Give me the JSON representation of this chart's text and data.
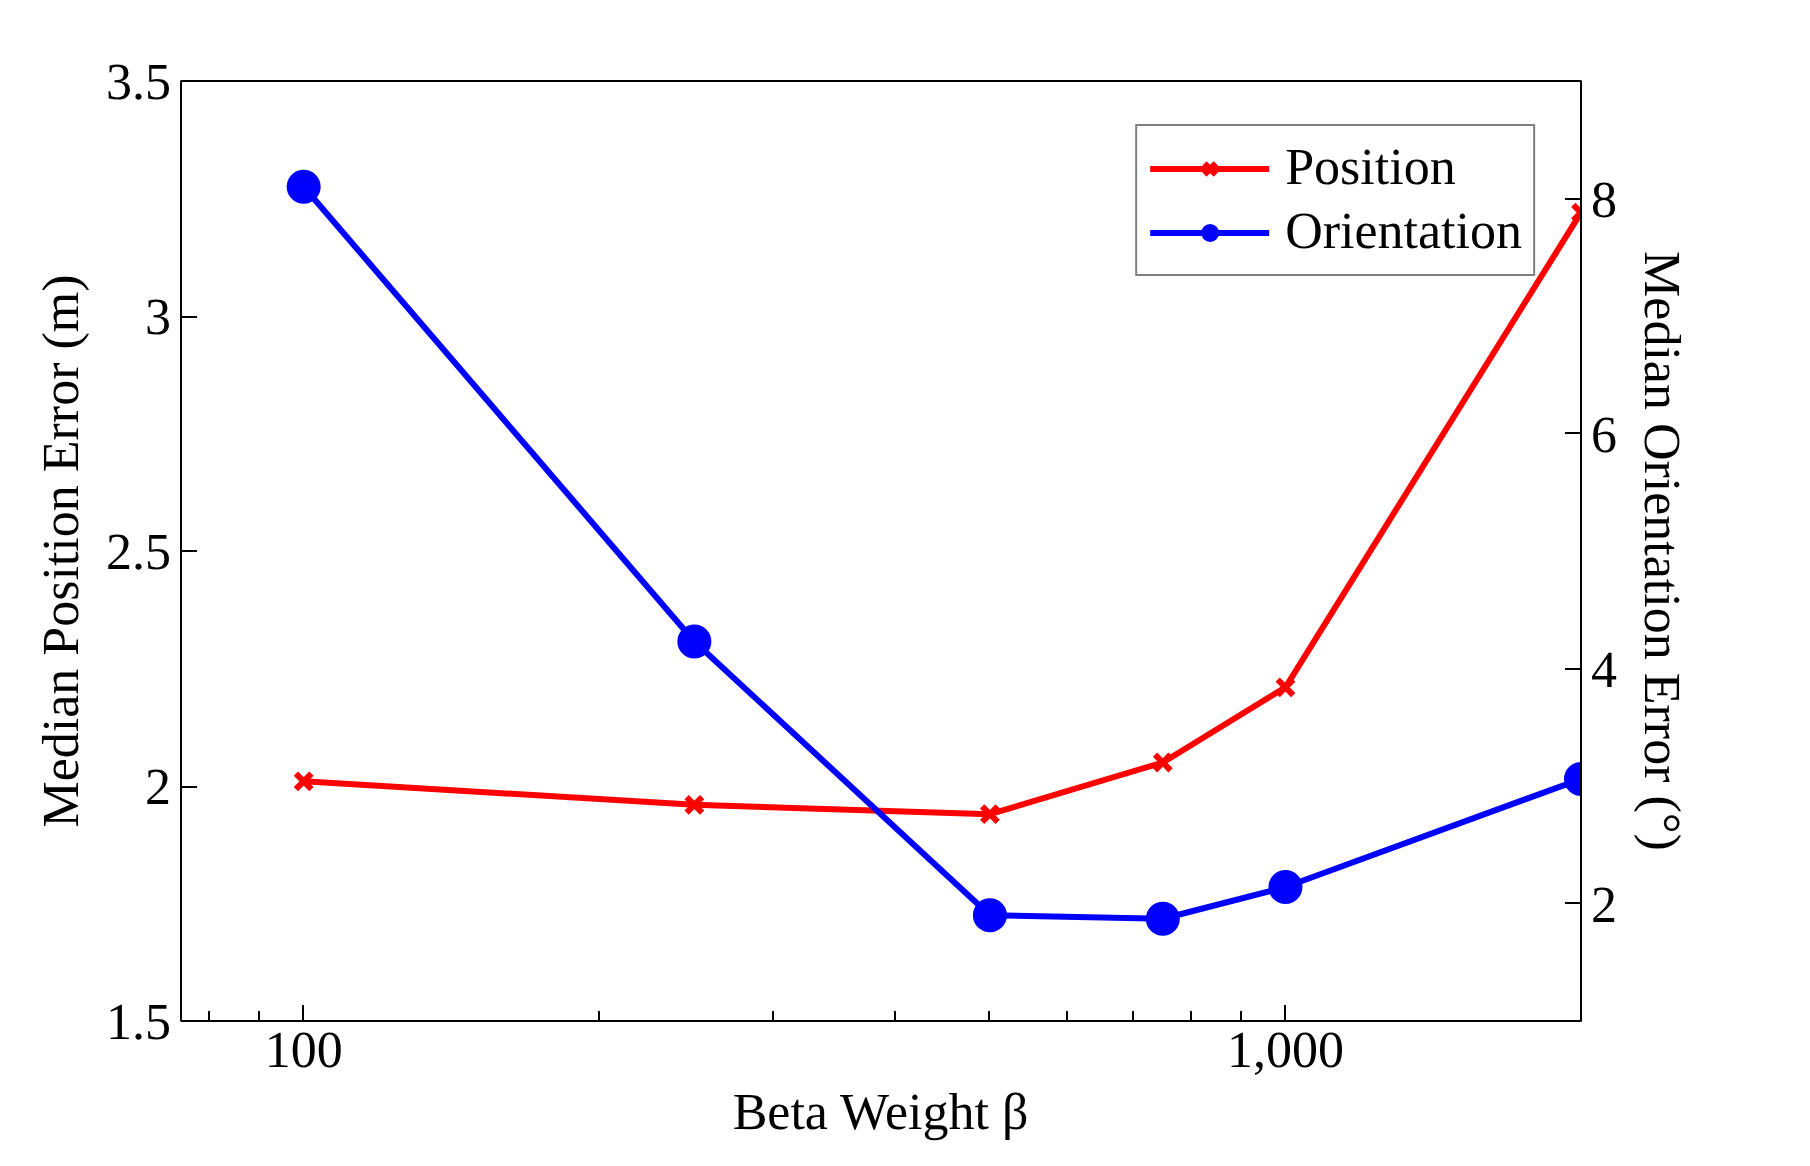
{
  "chart_data": {
    "type": "line",
    "xlabel": "Beta Weight β",
    "ylabel": "Median Position Error (m)",
    "y2label": "Median Orientation Error (°)",
    "x": [
      100,
      250,
      500,
      750,
      1000,
      2000
    ],
    "series": [
      {
        "name": "Position",
        "color": "#ff0000",
        "marker": "cross",
        "values": [
          2.01,
          1.96,
          1.94,
          2.05,
          2.21,
          3.22
        ]
      },
      {
        "name": "Orientation",
        "color": "#0000ff",
        "marker": "circle",
        "axis": "y2",
        "values": [
          8.1,
          4.23,
          1.9,
          1.87,
          2.14,
          3.06
        ]
      }
    ],
    "log": "x",
    "xlim": [
      75,
      2000
    ],
    "xticks": [
      {
        "value": 80,
        "label": null
      },
      {
        "value": 90,
        "label": null
      },
      100,
      {
        "value": 200,
        "label": null
      },
      {
        "value": 300,
        "label": null
      },
      {
        "value": 400,
        "label": null
      },
      {
        "value": 500,
        "label": null
      },
      {
        "value": 600,
        "label": null
      },
      {
        "value": 700,
        "label": null
      },
      {
        "value": 800,
        "label": null
      },
      {
        "value": 900,
        "label": null
      },
      {
        "value": 1000,
        "label": "1,000"
      }
    ],
    "ylim": [
      1.5,
      3.5
    ],
    "yticks": [
      1.5,
      2,
      2.5,
      3,
      3.5
    ],
    "y2lim": [
      1,
      9
    ],
    "y2ticks": [
      2,
      4,
      6,
      8
    ],
    "grid": false,
    "legend": "top right",
    "line_style": "solid"
  }
}
